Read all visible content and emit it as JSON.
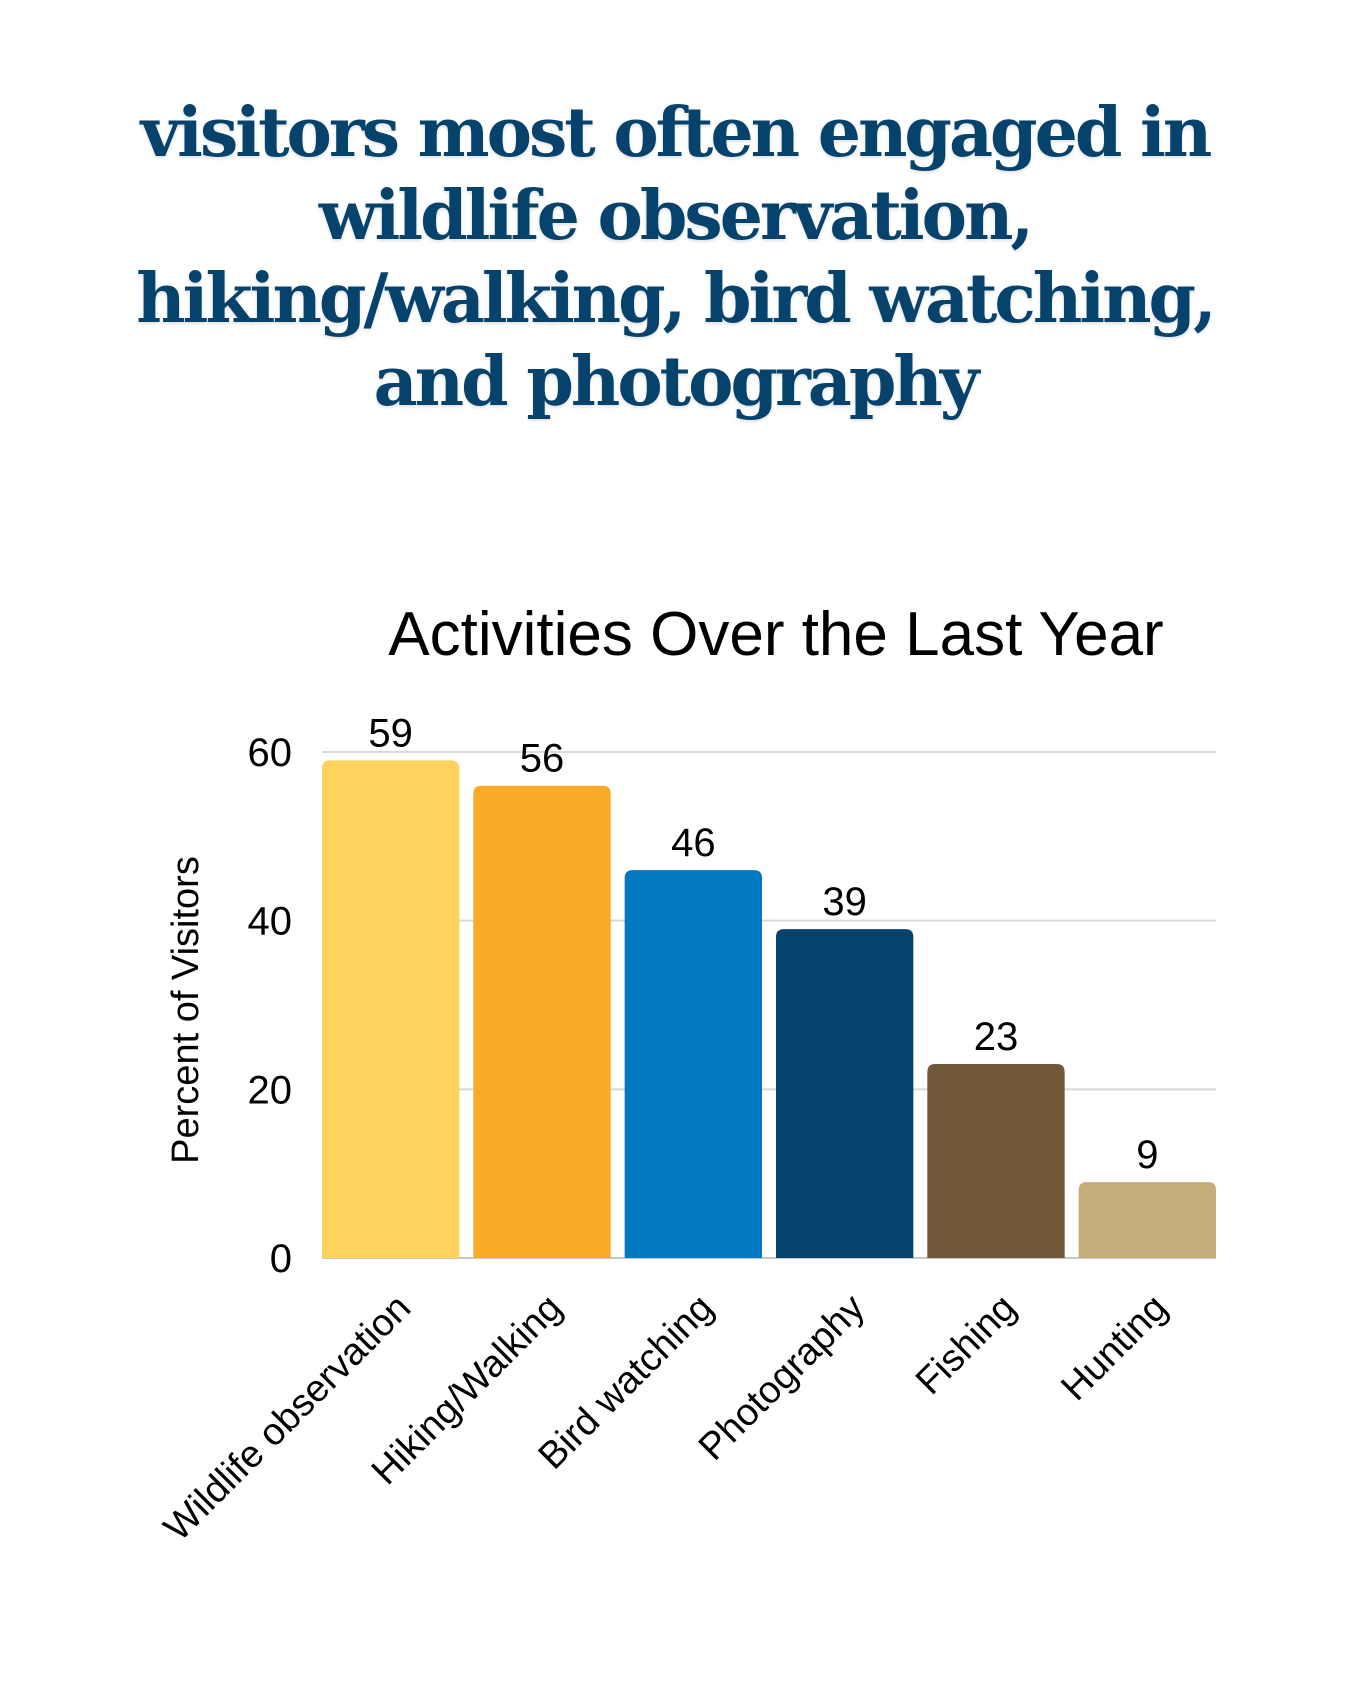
{
  "headline": "visitors most often engaged in wildlife observation, hiking/walking, bird watching, and photography",
  "chart_data": {
    "type": "bar",
    "title": "Activities Over the Last Year",
    "xlabel": "",
    "ylabel": "Percent of Visitors",
    "ylim": [
      0,
      60
    ],
    "yticks": [
      0,
      20,
      40,
      60
    ],
    "grid": true,
    "categories": [
      "Wildlife observation",
      "Hiking/Walking",
      "Bird watching",
      "Photography",
      "Fishing",
      "Hunting"
    ],
    "values": [
      59,
      56,
      46,
      39,
      23,
      9
    ],
    "colors": [
      "#fed25c",
      "#f9aa27",
      "#0079c1",
      "#05426c",
      "#715837",
      "#c5ad79"
    ],
    "data_labels": [
      "59",
      "56",
      "46",
      "39",
      "23",
      "9"
    ]
  }
}
